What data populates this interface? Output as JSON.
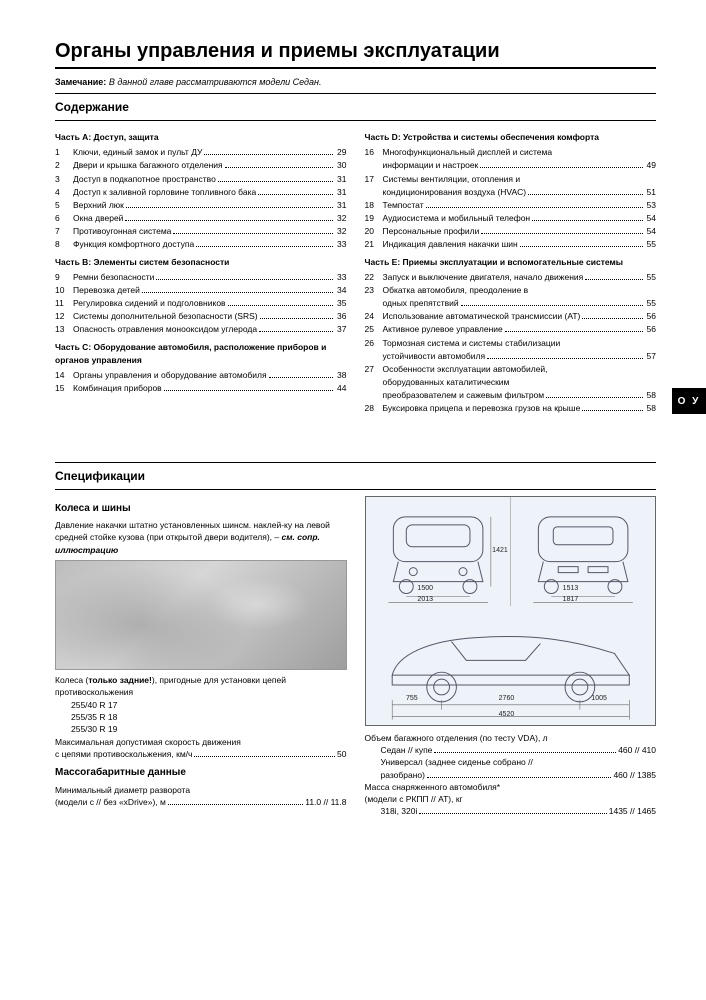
{
  "title": "Органы управления и приемы эксплуатации",
  "note_label": "Замечание:",
  "note_text": "В данной главе рассматриваются модели Седан.",
  "toc_heading": "Содержание",
  "side_tab": "О У",
  "parts_left": [
    {
      "heading": "Часть A: Доступ, защита",
      "items": [
        {
          "n": "1",
          "t": "Ключи, единый замок и пульт ДУ",
          "p": "29"
        },
        {
          "n": "2",
          "t": "Двери и крышка багажного отделения",
          "p": "30"
        },
        {
          "n": "3",
          "t": "Доступ в подкапотное пространство",
          "p": "31"
        },
        {
          "n": "4",
          "t": "Доступ к заливной горловине топливного бака",
          "p": "31"
        },
        {
          "n": "5",
          "t": "Верхний люк",
          "p": "31"
        },
        {
          "n": "6",
          "t": "Окна дверей",
          "p": "32"
        },
        {
          "n": "7",
          "t": "Противоугонная система",
          "p": "32"
        },
        {
          "n": "8",
          "t": "Функция комфортного доступа",
          "p": "33"
        }
      ]
    },
    {
      "heading": "Часть B: Элементы систем безопасности",
      "items": [
        {
          "n": "9",
          "t": "Ремни безопасности",
          "p": "33"
        },
        {
          "n": "10",
          "t": "Перевозка детей",
          "p": "34"
        },
        {
          "n": "11",
          "t": "Регулировка сидений и подголовников",
          "p": "35"
        },
        {
          "n": "12",
          "t": "Системы дополнительной безопасности (SRS)",
          "p": "36"
        },
        {
          "n": "13",
          "t": "Опасность отравления монооксидом углерода",
          "p": "37"
        }
      ]
    },
    {
      "heading": "Часть C: Оборудование автомобиля, расположение приборов и органов управления",
      "items": [
        {
          "n": "14",
          "t": "Органы управления и оборудование автомобиля",
          "p": "38"
        },
        {
          "n": "15",
          "t": "Комбинация приборов",
          "p": "44"
        }
      ]
    }
  ],
  "parts_right": [
    {
      "heading": "Часть D: Устройства и системы обеспечения комфорта",
      "items": [
        {
          "n": "16",
          "t": "Многофункциональный дисплей и система",
          "t2": "информации и настроек",
          "p": "49"
        },
        {
          "n": "17",
          "t": "Системы вентиляции, отопления и",
          "t2": "кондиционирования воздуха (HVAC)",
          "p": "51"
        },
        {
          "n": "18",
          "t": "Темпостат",
          "p": "53"
        },
        {
          "n": "19",
          "t": "Аудиосистема и мобильный телефон",
          "p": "54"
        },
        {
          "n": "20",
          "t": "Персональные профили",
          "p": "54"
        },
        {
          "n": "21",
          "t": "Индикация давления накачки шин",
          "p": "55"
        }
      ]
    },
    {
      "heading": "Часть E: Приемы эксплуатации и вспомогательные системы",
      "items": [
        {
          "n": "22",
          "t": "Запуск и выключение двигателя, начало движения",
          "p": "55"
        },
        {
          "n": "23",
          "t": "Обкатка автомобиля, преодоление в",
          "t2": "одных препятствий",
          "p": "55"
        },
        {
          "n": "24",
          "t": "Использование автоматической трансмиссии (АТ)",
          "p": "56"
        },
        {
          "n": "25",
          "t": "Активное рулевое управление",
          "p": "56"
        },
        {
          "n": "26",
          "t": "Тормозная система и системы стабилизации",
          "t2": "устойчивости автомобиля",
          "p": "57"
        },
        {
          "n": "27",
          "t": "Особенности эксплуатации автомобилей,",
          "t2": "оборудованных каталитическим",
          "t3": "преобразователем и сажевым фильтром",
          "p": "58"
        },
        {
          "n": "28",
          "t": "Буксировка прицепа и перевозка грузов на крыше",
          "p": "58"
        }
      ]
    }
  ],
  "spec_heading": "Спецификации",
  "wheels": {
    "heading": "Колеса и шины",
    "intro": "Давление накачки штатно установленных шинсм. наклей-\nку на левой средней стойке кузова (при открытой двери водителя), – ",
    "intro_bold": "см. сопр. иллюстрацию",
    "rear_label": "Колеса (только задние!), пригодные для установки цепей противоскольжения",
    "rear_bold": "только задние!",
    "sizes": [
      "255/40 R 17",
      "255/35 R 18",
      "255/30 R 19"
    ],
    "max_speed_label": "Максимальная допустимая скорость движения с цепями противоскольжения, км/ч",
    "max_speed_val": "50"
  },
  "mass": {
    "heading": "Массогабаритные данные",
    "turn_label": "Минимальный диаметр разворота (модели с // без «xDrive»), м",
    "turn_val": "11.0 // 11.8"
  },
  "dims": {
    "h": "1421",
    "track_f": "1500",
    "width_f": "2013",
    "track_r": "1513",
    "width_r": "1817",
    "front_oh": "755",
    "wheelbase": "2760",
    "rear_oh": "1005",
    "length": "4520"
  },
  "trunk": {
    "label": "Объем багажного отделения (по тесту VDA), л",
    "sedan_label": "Седан // купе",
    "sedan_val": "460 // 410",
    "wagon_label": "Универсал (заднее сиденье собрано // разобрано)",
    "wagon_val": "460 // 1385"
  },
  "curb": {
    "label": "Масса снаряженного автомобиля* (модели с РКПП // АТ), кг",
    "row1_label": "318i, 320i",
    "row1_val": "1435 // 1465"
  }
}
